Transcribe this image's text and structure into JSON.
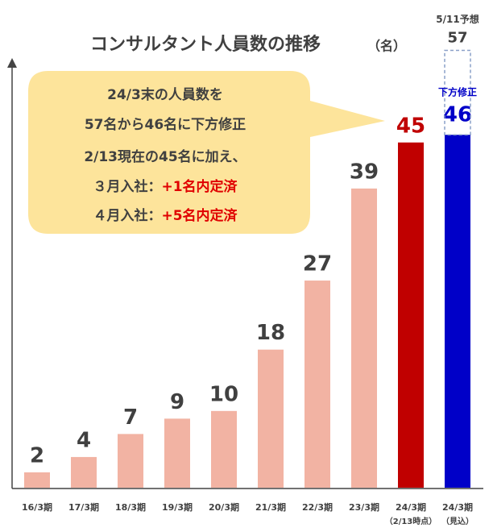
{
  "chart_data": {
    "type": "bar",
    "title": "コンサルタント人員数の推移",
    "unit": "（名）",
    "categories": [
      "16/3期",
      "17/3期",
      "18/3期",
      "19/3期",
      "20/3期",
      "21/3期",
      "22/3期",
      "23/3期",
      "24/3期",
      "24/3期"
    ],
    "category_notes": [
      null,
      null,
      null,
      null,
      null,
      null,
      null,
      null,
      "（2/13時点）",
      "（見込）"
    ],
    "values": [
      2,
      4,
      7,
      9,
      10,
      18,
      27,
      39,
      45,
      46
    ],
    "colors": [
      "#f2b3a3",
      "#f2b3a3",
      "#f2b3a3",
      "#f2b3a3",
      "#f2b3a3",
      "#f2b3a3",
      "#f2b3a3",
      "#f2b3a3",
      "#c00000",
      "#0000c8"
    ],
    "label_colors": [
      "#404040",
      "#404040",
      "#404040",
      "#404040",
      "#404040",
      "#404040",
      "#404040",
      "#404040",
      "#c00000",
      "#0000c8"
    ],
    "ylim": [
      0,
      60
    ],
    "forecast": {
      "label": "5/11予想",
      "value": 57
    },
    "revision_label": "下方修正",
    "callout": {
      "lines": [
        [
          "24/3末の人員数を"
        ],
        [
          "57名から46名に下方修正"
        ],
        [
          "2/13現在の45名に加え、"
        ],
        [
          "３月入社：",
          "+1名内定済"
        ],
        [
          "４月入社：",
          "+5名内定済"
        ]
      ],
      "highlight_color": "#e00000"
    }
  }
}
